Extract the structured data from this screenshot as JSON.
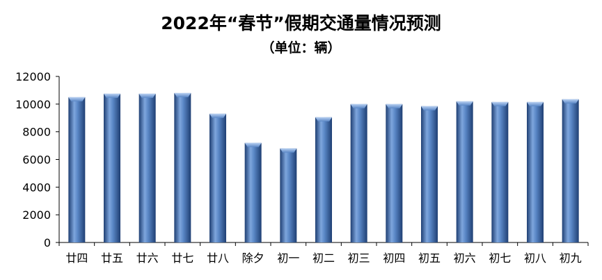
{
  "chart_data": {
    "type": "bar",
    "title": "2022年“春节”假期交通量情况预测",
    "subtitle": "（单位：辆）",
    "xlabel": "",
    "ylabel": "",
    "categories": [
      "廿四",
      "廿五",
      "廿六",
      "廿七",
      "廿八",
      "除夕",
      "初一",
      "初二",
      "初三",
      "初四",
      "初五",
      "初六",
      "初七",
      "初八",
      "初九"
    ],
    "values": [
      10500,
      10750,
      10750,
      10800,
      9300,
      7200,
      6800,
      9050,
      10000,
      10000,
      9850,
      10200,
      10150,
      10150,
      10350
    ],
    "ylim": [
      0,
      12000
    ],
    "yticks": [
      0,
      2000,
      4000,
      6000,
      8000,
      10000,
      12000
    ],
    "grid": false,
    "legend": "none",
    "colors": {
      "bar_light": "#8fb3e6",
      "bar_mid": "#4f81bd",
      "bar_dark": "#1f3f73",
      "axis": "#000000"
    }
  }
}
